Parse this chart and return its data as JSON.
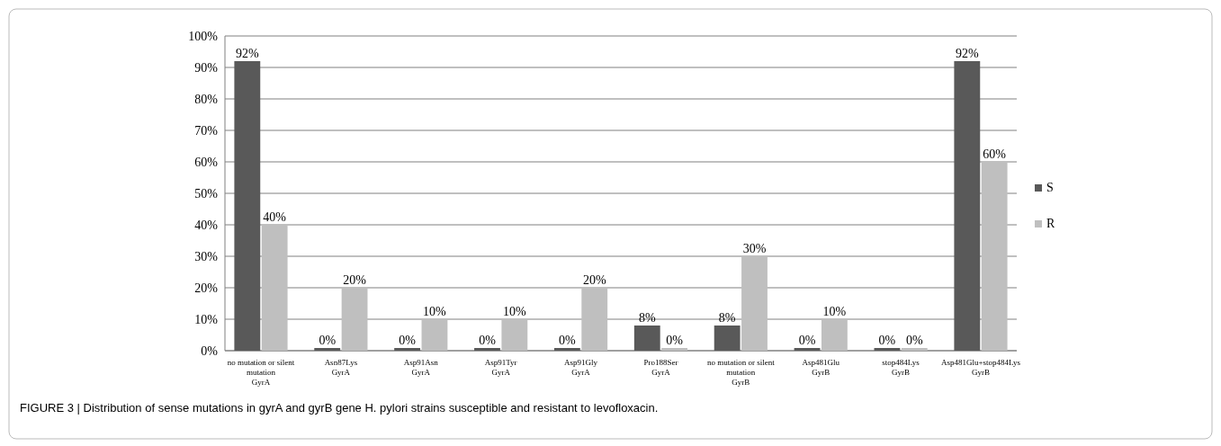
{
  "chart_data": {
    "type": "bar",
    "categories": [
      "no mutation or silent\nmutation\nGyrA",
      "Asn87Lys\nGyrA",
      "Asp91Asn\nGyrA",
      "Asp91Tyr\nGyrA",
      "Asp91Gly\nGyrA",
      "Pro188Ser\nGyrA",
      "no mutation or silent\nmutation\nGyrB",
      "Asp481Glu\nGyrB",
      "stop484Lys\nGyrB",
      "Asp481Glu+stop484Lys\nGyrB"
    ],
    "series": [
      {
        "name": "S",
        "color": "#595959",
        "values": [
          92,
          0,
          0,
          0,
          0,
          8,
          8,
          0,
          0,
          92
        ],
        "value_labels": [
          "92%",
          "0%",
          "0%",
          "0%",
          "0%",
          "8%",
          "8%",
          "0%",
          "0%",
          "92%"
        ]
      },
      {
        "name": "R",
        "color": "#bfbfbf",
        "values": [
          40,
          20,
          10,
          10,
          20,
          0,
          30,
          10,
          0,
          60
        ],
        "value_labels": [
          "40%",
          "20%",
          "10%",
          "10%",
          "20%",
          "0%",
          "30%",
          "10%",
          "0%",
          "60%"
        ]
      }
    ],
    "ylim": [
      0,
      100
    ],
    "yticks": [
      {
        "value": 0,
        "label": "0%"
      },
      {
        "value": 10,
        "label": "10%"
      },
      {
        "value": 20,
        "label": "20%"
      },
      {
        "value": 30,
        "label": "30%"
      },
      {
        "value": 40,
        "label": "40%"
      },
      {
        "value": 50,
        "label": "50%"
      },
      {
        "value": 60,
        "label": "60%"
      },
      {
        "value": 70,
        "label": "70%"
      },
      {
        "value": 80,
        "label": "80%"
      },
      {
        "value": 90,
        "label": "90%"
      },
      {
        "value": 100,
        "label": "100%"
      }
    ],
    "grid": "y",
    "legend": "right",
    "annotations": [
      "FIGURE 3 | Distribution of sense mutations in gyrA and gyrB gene H. pylori strains susceptible and resistant to levofloxacin."
    ]
  }
}
